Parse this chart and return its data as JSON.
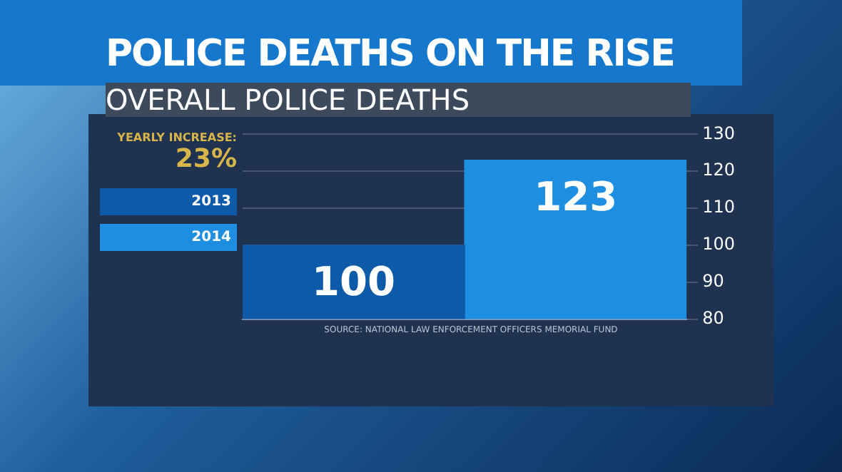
{
  "chart_data": {
    "type": "bar",
    "title": "POLICE DEATHS ON THE RISE",
    "subtitle": "OVERALL POLICE DEATHS",
    "categories": [
      null
    ],
    "series": [
      {
        "name": "2013",
        "color": "#0d5aa8",
        "values": [
          100
        ]
      },
      {
        "name": "2014",
        "color": "#1e8fe0",
        "values": [
          123
        ]
      }
    ],
    "ylim": [
      80,
      130
    ],
    "yticks": [
      80,
      90,
      100,
      110,
      120,
      130
    ],
    "grid": "y",
    "legend": "left",
    "data_labels": true,
    "annotations": [
      "YEARLY INCREASE:",
      "23%",
      "SOURCE: NATIONAL LAW ENFORCEMENT OFFICERS MEMORIAL FUND"
    ]
  }
}
